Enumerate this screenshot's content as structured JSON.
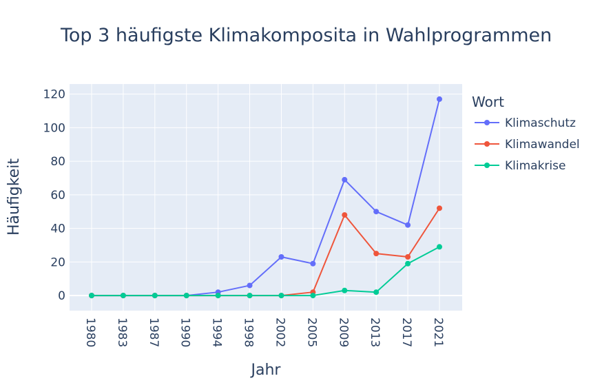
{
  "chart_data": {
    "type": "line",
    "title": "Top 3 häufigste Klimakomposita in Wahlprogrammen",
    "xlabel": "Jahr",
    "ylabel": "Häufigkeit",
    "categories": [
      "1980",
      "1983",
      "1987",
      "1990",
      "1994",
      "1998",
      "2002",
      "2005",
      "2009",
      "2013",
      "2017",
      "2021"
    ],
    "ylim": [
      -9,
      126
    ],
    "yticks": [
      0,
      20,
      40,
      60,
      80,
      100,
      120
    ],
    "legend_title": "Wort",
    "legend_position": "right",
    "grid": true,
    "series": [
      {
        "name": "Klimaschutz",
        "color": "#636efa",
        "values": [
          0,
          0,
          0,
          0,
          2,
          6,
          23,
          19,
          69,
          50,
          42,
          117
        ]
      },
      {
        "name": "Klimawandel",
        "color": "#ef553b",
        "values": [
          0,
          0,
          0,
          0,
          0,
          0,
          0,
          2,
          48,
          25,
          23,
          52
        ]
      },
      {
        "name": "Klimakrise",
        "color": "#00cc96",
        "values": [
          0,
          0,
          0,
          0,
          0,
          0,
          0,
          0,
          3,
          2,
          19,
          29
        ]
      }
    ]
  }
}
